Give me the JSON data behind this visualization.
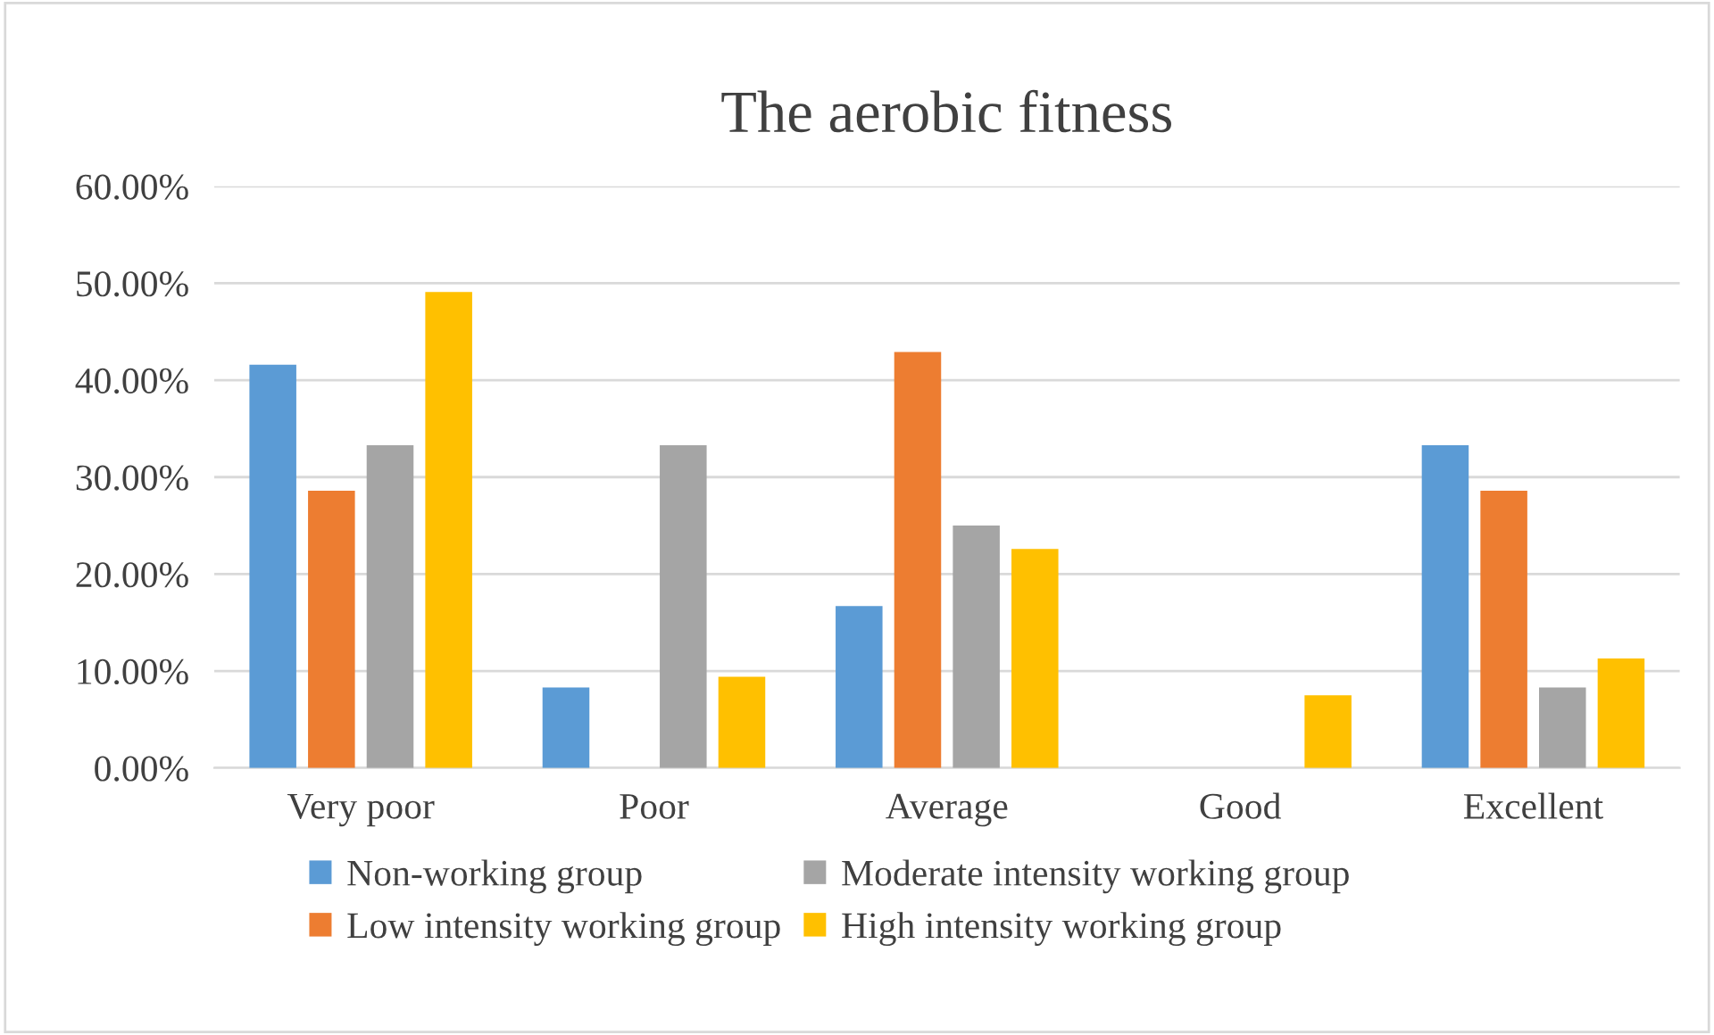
{
  "chart_data": {
    "type": "bar",
    "title": "The aerobic fitness",
    "categories": [
      "Very poor",
      "Poor",
      "Average",
      "Good",
      "Excellent"
    ],
    "series": [
      {
        "name": "Non-working group",
        "color": "#5b9bd5",
        "values": [
          41.6,
          8.3,
          16.7,
          0,
          33.3
        ]
      },
      {
        "name": "Low intensity working group",
        "color": "#ed7d31",
        "values": [
          28.6,
          0,
          42.9,
          0,
          28.6
        ]
      },
      {
        "name": "Moderate intensity working group",
        "color": "#a5a5a5",
        "values": [
          33.3,
          33.3,
          25.0,
          0,
          8.3
        ]
      },
      {
        "name": "High intensity working group",
        "color": "#ffc000",
        "values": [
          49.1,
          9.4,
          22.6,
          7.5,
          11.3
        ]
      }
    ],
    "ylim": [
      0,
      60
    ],
    "yticks": [
      {
        "value": 0,
        "label": "0.00%"
      },
      {
        "value": 10,
        "label": "10.00%"
      },
      {
        "value": 20,
        "label": "20.00%"
      },
      {
        "value": 30,
        "label": "30.00%"
      },
      {
        "value": 40,
        "label": "40.00%"
      },
      {
        "value": 50,
        "label": "50.00%"
      },
      {
        "value": 60,
        "label": "60.00%"
      }
    ],
    "grid": "y",
    "legend": "bottom"
  }
}
